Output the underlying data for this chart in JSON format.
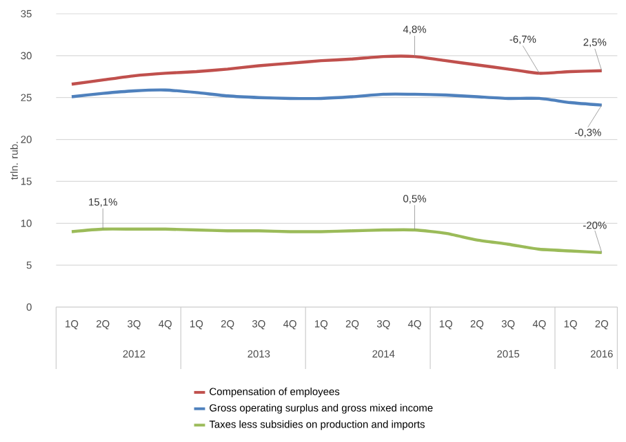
{
  "chart_data": {
    "type": "line",
    "ylabel": "trln. rub.",
    "categories": [
      "1Q",
      "2Q",
      "3Q",
      "4Q",
      "1Q",
      "2Q",
      "3Q",
      "4Q",
      "1Q",
      "2Q",
      "3Q",
      "4Q",
      "1Q",
      "2Q",
      "3Q",
      "4Q",
      "1Q",
      "2Q"
    ],
    "series": [
      {
        "name": "Compensation of employees",
        "color": "#c0504d",
        "values": [
          26.6,
          27.1,
          27.6,
          27.9,
          28.1,
          28.4,
          28.8,
          29.1,
          29.4,
          29.6,
          29.9,
          29.9,
          29.4,
          28.9,
          28.4,
          27.9,
          28.1,
          28.2
        ]
      },
      {
        "name": "Gross operating surplus and gross mixed income",
        "color": "#4f81bd",
        "values": [
          25.1,
          25.5,
          25.8,
          25.9,
          25.6,
          25.2,
          25.0,
          24.9,
          24.9,
          25.1,
          25.4,
          25.4,
          25.3,
          25.1,
          24.9,
          24.9,
          24.4,
          24.1
        ]
      },
      {
        "name": "Taxes less subsidies on production and imports",
        "color": "#9bbb59",
        "values": [
          9.0,
          9.3,
          9.3,
          9.3,
          9.2,
          9.1,
          9.1,
          9.0,
          9.0,
          9.1,
          9.2,
          9.2,
          8.8,
          8.0,
          7.5,
          6.9,
          6.7,
          6.5
        ]
      }
    ],
    "ylim": [
      0,
      35
    ],
    "yticks": [
      0,
      5,
      10,
      15,
      20,
      25,
      30,
      35
    ],
    "grid": "y",
    "legend": "bottom",
    "annotations": [
      {
        "text": "15,1%",
        "y": 9.3
      },
      {
        "text": "4,8%",
        "y": 29.9
      },
      {
        "text": "0,5%",
        "y": 9.2
      },
      {
        "text": "-6,7%",
        "y": 27.9
      },
      {
        "text": "2,5%",
        "y": 28.2
      },
      {
        "text": "-0,3%",
        "y": 24.1
      },
      {
        "text": "-20%",
        "y": 6.5
      },
      "2012",
      "2013",
      "2014",
      "2015",
      "2016"
    ]
  }
}
